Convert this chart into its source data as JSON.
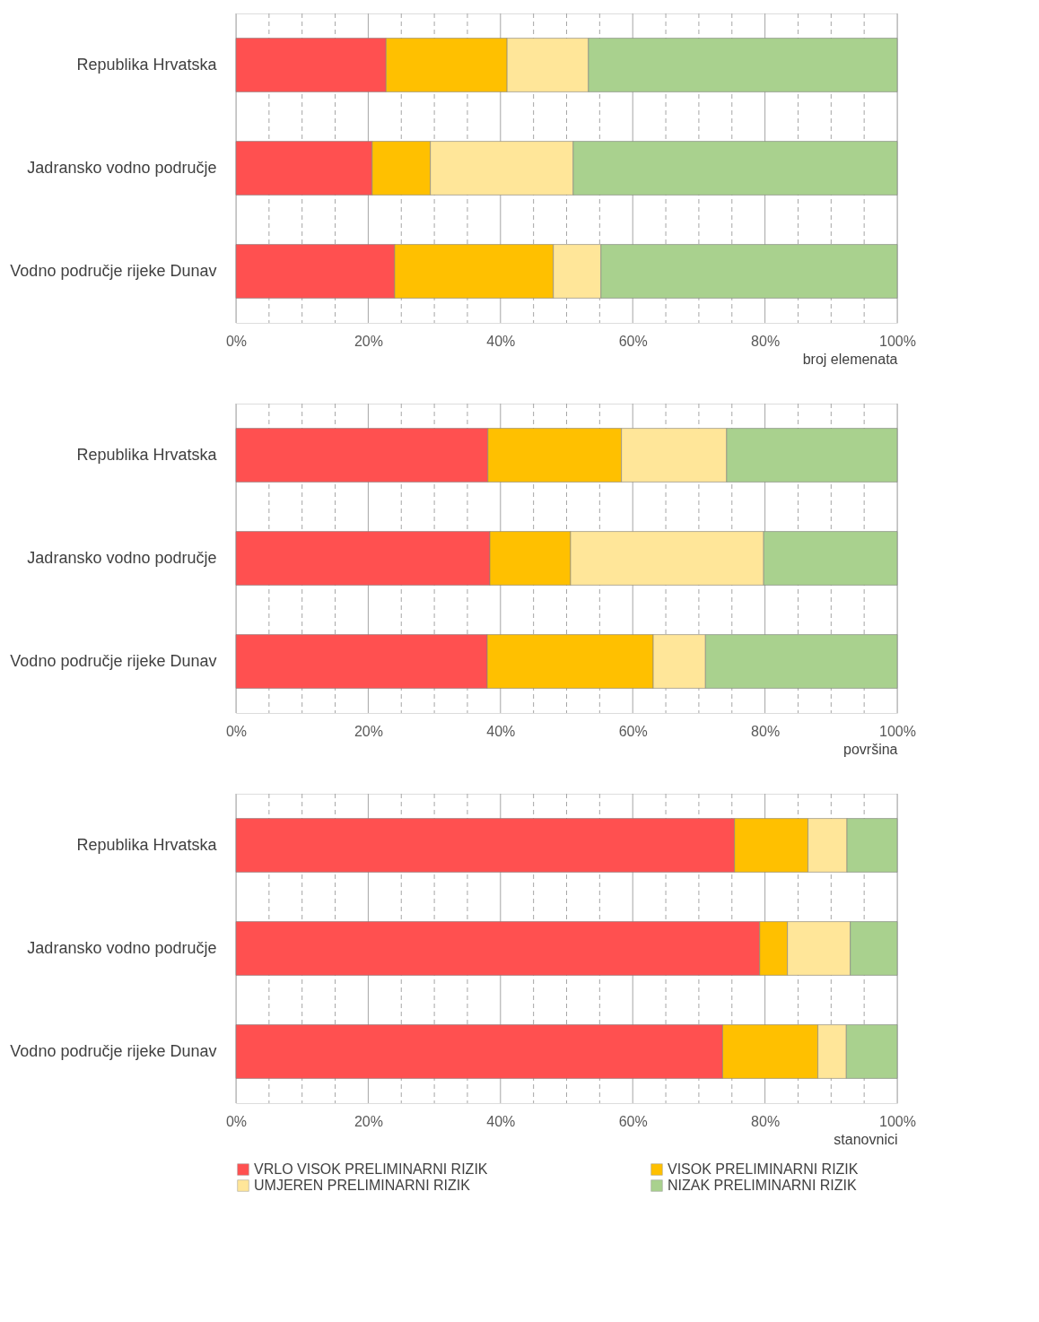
{
  "chart_data": [
    {
      "type": "bar",
      "orientation": "horizontal",
      "stacked": true,
      "categories": [
        "Republika Hrvatska",
        "Jadransko vodno područje",
        "Vodno područje rijeke Dunav"
      ],
      "series": [
        {
          "color": "#ff5050",
          "values": [
            22.7,
            20.6,
            24.0
          ]
        },
        {
          "color": "#ffc000",
          "values": [
            18.3,
            8.8,
            24.0
          ]
        },
        {
          "color": "#ffe699",
          "values": [
            12.3,
            21.6,
            7.2
          ]
        },
        {
          "color": "#a9d18e",
          "values": [
            46.7,
            49.0,
            44.8
          ]
        }
      ],
      "xlim": [
        0,
        100
      ],
      "xticks": [
        {
          "value": 0,
          "label": "0%"
        },
        {
          "value": 5,
          "label": null
        },
        {
          "value": 10,
          "label": null
        },
        {
          "value": 15,
          "label": null
        },
        {
          "value": 20,
          "label": "20%"
        },
        {
          "value": 25,
          "label": null
        },
        {
          "value": 30,
          "label": null
        },
        {
          "value": 35,
          "label": null
        },
        {
          "value": 40,
          "label": "40%"
        },
        {
          "value": 45,
          "label": null
        },
        {
          "value": 50,
          "label": null
        },
        {
          "value": 55,
          "label": null
        },
        {
          "value": 60,
          "label": "60%"
        },
        {
          "value": 65,
          "label": null
        },
        {
          "value": 70,
          "label": null
        },
        {
          "value": 75,
          "label": null
        },
        {
          "value": 80,
          "label": "80%"
        },
        {
          "value": 85,
          "label": null
        },
        {
          "value": 90,
          "label": null
        },
        {
          "value": 95,
          "label": null
        },
        {
          "value": 100,
          "label": "100%"
        }
      ],
      "xlabel": "broj elemenata",
      "grid": "x",
      "legend": false
    },
    {
      "type": "bar",
      "orientation": "horizontal",
      "stacked": true,
      "categories": [
        "Republika Hrvatska",
        "Jadransko vodno područje",
        "Vodno područje rijeke Dunav"
      ],
      "series": [
        {
          "color": "#ff5050",
          "values": [
            38.1,
            38.4,
            38.0
          ]
        },
        {
          "color": "#ffc000",
          "values": [
            20.2,
            12.2,
            25.1
          ]
        },
        {
          "color": "#ffe699",
          "values": [
            15.9,
            29.2,
            7.9
          ]
        },
        {
          "color": "#a9d18e",
          "values": [
            25.8,
            20.2,
            29.0
          ]
        }
      ],
      "xlim": [
        0,
        100
      ],
      "xticks": [
        {
          "value": 0,
          "label": "0%"
        },
        {
          "value": 5,
          "label": null
        },
        {
          "value": 10,
          "label": null
        },
        {
          "value": 15,
          "label": null
        },
        {
          "value": 20,
          "label": "20%"
        },
        {
          "value": 25,
          "label": null
        },
        {
          "value": 30,
          "label": null
        },
        {
          "value": 35,
          "label": null
        },
        {
          "value": 40,
          "label": "40%"
        },
        {
          "value": 45,
          "label": null
        },
        {
          "value": 50,
          "label": null
        },
        {
          "value": 55,
          "label": null
        },
        {
          "value": 60,
          "label": "60%"
        },
        {
          "value": 65,
          "label": null
        },
        {
          "value": 70,
          "label": null
        },
        {
          "value": 75,
          "label": null
        },
        {
          "value": 80,
          "label": "80%"
        },
        {
          "value": 85,
          "label": null
        },
        {
          "value": 90,
          "label": null
        },
        {
          "value": 95,
          "label": null
        },
        {
          "value": 100,
          "label": "100%"
        }
      ],
      "xlabel": "površina",
      "grid": "x",
      "legend": false
    },
    {
      "type": "bar",
      "orientation": "horizontal",
      "stacked": true,
      "categories": [
        "Republika Hrvatska",
        "Jadransko vodno područje",
        "Vodno područje rijeke Dunav"
      ],
      "series": [
        {
          "name": "VRLO VISOK PRELIMINARNI RIZIK",
          "color": "#ff5050",
          "values": [
            75.4,
            79.2,
            73.6
          ]
        },
        {
          "name": "VISOK PRELIMINARNI RIZIK",
          "color": "#ffc000",
          "values": [
            11.1,
            4.2,
            14.4
          ]
        },
        {
          "name": "UMJEREN PRELIMINARNI RIZIK",
          "color": "#ffe699",
          "values": [
            5.9,
            9.5,
            4.3
          ]
        },
        {
          "name": "NIZAK PRELIMINARNI RIZIK",
          "color": "#a9d18e",
          "values": [
            7.6,
            7.1,
            7.7
          ]
        }
      ],
      "xlim": [
        0,
        100
      ],
      "xticks": [
        {
          "value": 0,
          "label": "0%"
        },
        {
          "value": 5,
          "label": null
        },
        {
          "value": 10,
          "label": null
        },
        {
          "value": 15,
          "label": null
        },
        {
          "value": 20,
          "label": "20%"
        },
        {
          "value": 25,
          "label": null
        },
        {
          "value": 30,
          "label": null
        },
        {
          "value": 35,
          "label": null
        },
        {
          "value": 40,
          "label": "40%"
        },
        {
          "value": 45,
          "label": null
        },
        {
          "value": 50,
          "label": null
        },
        {
          "value": 55,
          "label": null
        },
        {
          "value": 60,
          "label": "60%"
        },
        {
          "value": 65,
          "label": null
        },
        {
          "value": 70,
          "label": null
        },
        {
          "value": 75,
          "label": null
        },
        {
          "value": 80,
          "label": "80%"
        },
        {
          "value": 85,
          "label": null
        },
        {
          "value": 90,
          "label": null
        },
        {
          "value": 95,
          "label": null
        },
        {
          "value": 100,
          "label": "100%"
        }
      ],
      "xlabel": "stanovnici",
      "grid": "x",
      "legend": "bottom"
    }
  ]
}
